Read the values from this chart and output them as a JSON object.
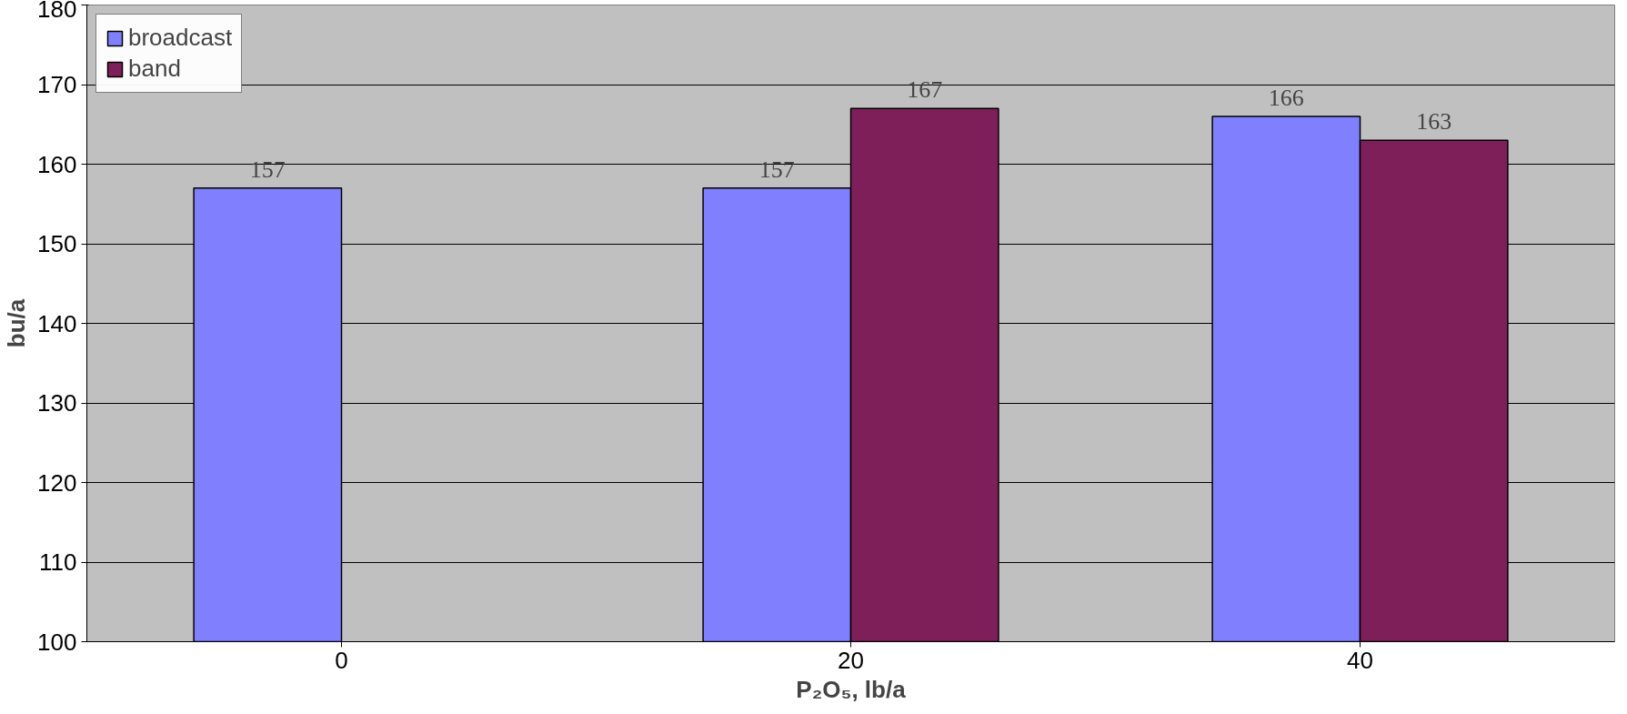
{
  "chart_data": {
    "type": "bar",
    "xlabel": "P₂O₅, lb/a",
    "ylabel": "bu/a",
    "categories": [
      "0",
      "20",
      "40"
    ],
    "series": [
      {
        "name": "broadcast",
        "color": "#8080ff",
        "values": [
          157,
          157,
          166
        ]
      },
      {
        "name": "band",
        "color": "#7f1f5a",
        "values": [
          null,
          167,
          163
        ]
      }
    ],
    "ylim": [
      100,
      180
    ],
    "yticks": [
      100,
      110,
      120,
      130,
      140,
      150,
      160,
      170,
      180
    ],
    "grid": "y",
    "legend": "top left",
    "data_labels": true
  }
}
